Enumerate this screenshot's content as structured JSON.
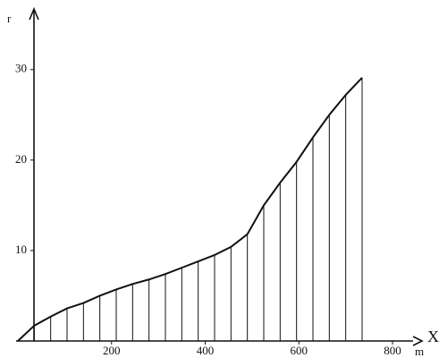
{
  "chart_data": {
    "type": "line",
    "y_label": "r",
    "x_label": "X",
    "x_unit": "m",
    "x": [
      0,
      35,
      70,
      105,
      140,
      175,
      210,
      245,
      280,
      315,
      350,
      385,
      420,
      455,
      490,
      525,
      560,
      595,
      630,
      665,
      700,
      735
    ],
    "series": [
      {
        "color": "#111111",
        "values": [
          0,
          1.7,
          2.7,
          3.6,
          4.2,
          5.0,
          5.7,
          6.3,
          6.8,
          7.4,
          8.1,
          8.8,
          9.5,
          10.4,
          11.8,
          15.0,
          17.5,
          19.8,
          22.5,
          25.0,
          27.2,
          29.1
        ]
      }
    ],
    "xlim": [
      0,
      840
    ],
    "ylim": [
      0,
      37
    ],
    "xticks": [
      200,
      400,
      600,
      800
    ],
    "yticks": [
      10,
      20,
      30
    ],
    "drop_lines": true
  }
}
